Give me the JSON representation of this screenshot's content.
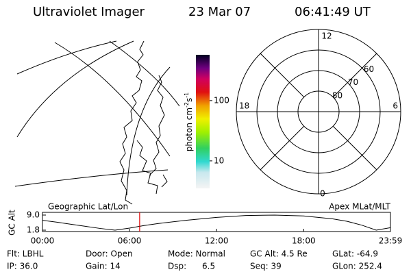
{
  "header": {
    "title": "Ultraviolet Imager",
    "date": "23 Mar 07",
    "time": "06:41:49 UT"
  },
  "colorbar": {
    "label": "photon cm",
    "label_exp1": "-2",
    "label_unit2": "s",
    "label_exp2": "-1",
    "lim": [
      3.5,
      575
    ],
    "log": true,
    "ticks": [
      10,
      100
    ]
  },
  "polar": {
    "latlim": [
      50,
      90
    ],
    "rings": [
      60,
      70,
      80
    ],
    "mlt_labels": {
      "top": "12",
      "bottom": "0",
      "left": "18",
      "right": "6"
    }
  },
  "timeline": {
    "left_title": "Geographic Lat/Lon",
    "right_title": "Apex MLat/MLT",
    "ylabel": "GC Alt",
    "ylim": [
      1.15,
      10.3
    ],
    "yticks": [
      {
        "value": 9.0,
        "label": "9.0"
      },
      {
        "value": 1.8,
        "label": "1.8"
      }
    ],
    "xlim": [
      0,
      23.98
    ],
    "xticks": [
      {
        "value": 0,
        "label": "00:00"
      },
      {
        "value": 6,
        "label": "06:00"
      },
      {
        "value": 12,
        "label": "12:00"
      },
      {
        "value": 18,
        "label": "18:00"
      },
      {
        "value": 23.98,
        "label": "23:59"
      }
    ],
    "x": [
      0,
      1,
      2,
      3,
      4,
      5,
      6,
      7,
      8,
      10,
      12,
      14,
      16,
      18,
      20,
      21,
      22,
      23,
      23.98
    ],
    "values": [
      6.5,
      5.6,
      4.6,
      3.6,
      2.6,
      1.8,
      2.8,
      4.0,
      5.0,
      6.6,
      7.9,
      8.8,
      9.0,
      8.6,
      7.2,
      6.0,
      4.2,
      1.8,
      3.0
    ],
    "marker": 6.697,
    "marker_color": "#e00000"
  },
  "info": [
    [
      "Flt: LBHL",
      "Door: Open",
      "Mode: Normal",
      "GC Alt: 4.5 Re",
      "GLat: -64.9"
    ],
    [
      "IP: 36.0",
      "Gain: 14",
      "Dsp:      6.5",
      "Seq: 39",
      "GLon: 252.4"
    ]
  ]
}
